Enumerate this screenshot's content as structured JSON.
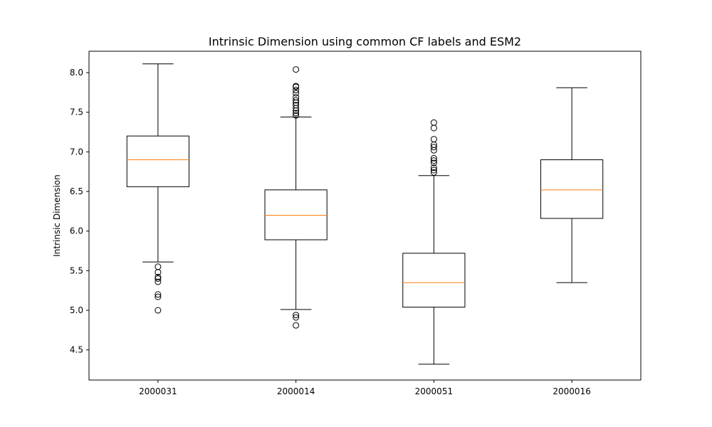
{
  "chart_data": {
    "type": "box",
    "title": "Intrinsic Dimension using common CF labels and ESM2",
    "xlabel": "",
    "ylabel": "Intrinsic Dimension",
    "ylim": [
      4.12,
      8.27
    ],
    "yticks": [
      "4.5",
      "5.0",
      "5.5",
      "6.0",
      "6.5",
      "7.0",
      "7.5",
      "8.0"
    ],
    "grid": false,
    "categories": [
      "2000031",
      "2000014",
      "2000051",
      "2000016"
    ],
    "boxes": [
      {
        "category": "2000031",
        "whisker_low": 5.61,
        "q1": 6.56,
        "median": 6.9,
        "q3": 7.2,
        "whisker_high": 8.11,
        "outliers": [
          5.0,
          5.17,
          5.2,
          5.36,
          5.4,
          5.42,
          5.48,
          5.55
        ]
      },
      {
        "category": "2000014",
        "whisker_low": 5.01,
        "q1": 5.89,
        "median": 6.2,
        "q3": 6.52,
        "whisker_high": 7.44,
        "outliers": [
          4.81,
          4.91,
          4.94,
          7.46,
          7.49,
          7.52,
          7.55,
          7.59,
          7.62,
          7.65,
          7.69,
          7.74,
          7.78,
          7.82,
          7.83,
          8.04
        ]
      },
      {
        "category": "2000051",
        "whisker_low": 4.32,
        "q1": 5.04,
        "median": 5.35,
        "q3": 5.72,
        "whisker_high": 6.7,
        "outliers": [
          6.74,
          6.77,
          6.8,
          6.86,
          6.89,
          6.92,
          7.02,
          7.06,
          7.09,
          7.16,
          7.3,
          7.37
        ]
      },
      {
        "category": "2000016",
        "whisker_low": 5.35,
        "q1": 6.16,
        "median": 6.52,
        "q3": 6.9,
        "whisker_high": 7.81,
        "outliers": []
      }
    ],
    "colors": {
      "box": "#000000",
      "median": "#ff7f0e",
      "outlier": "#000000",
      "background": "#ffffff"
    }
  }
}
